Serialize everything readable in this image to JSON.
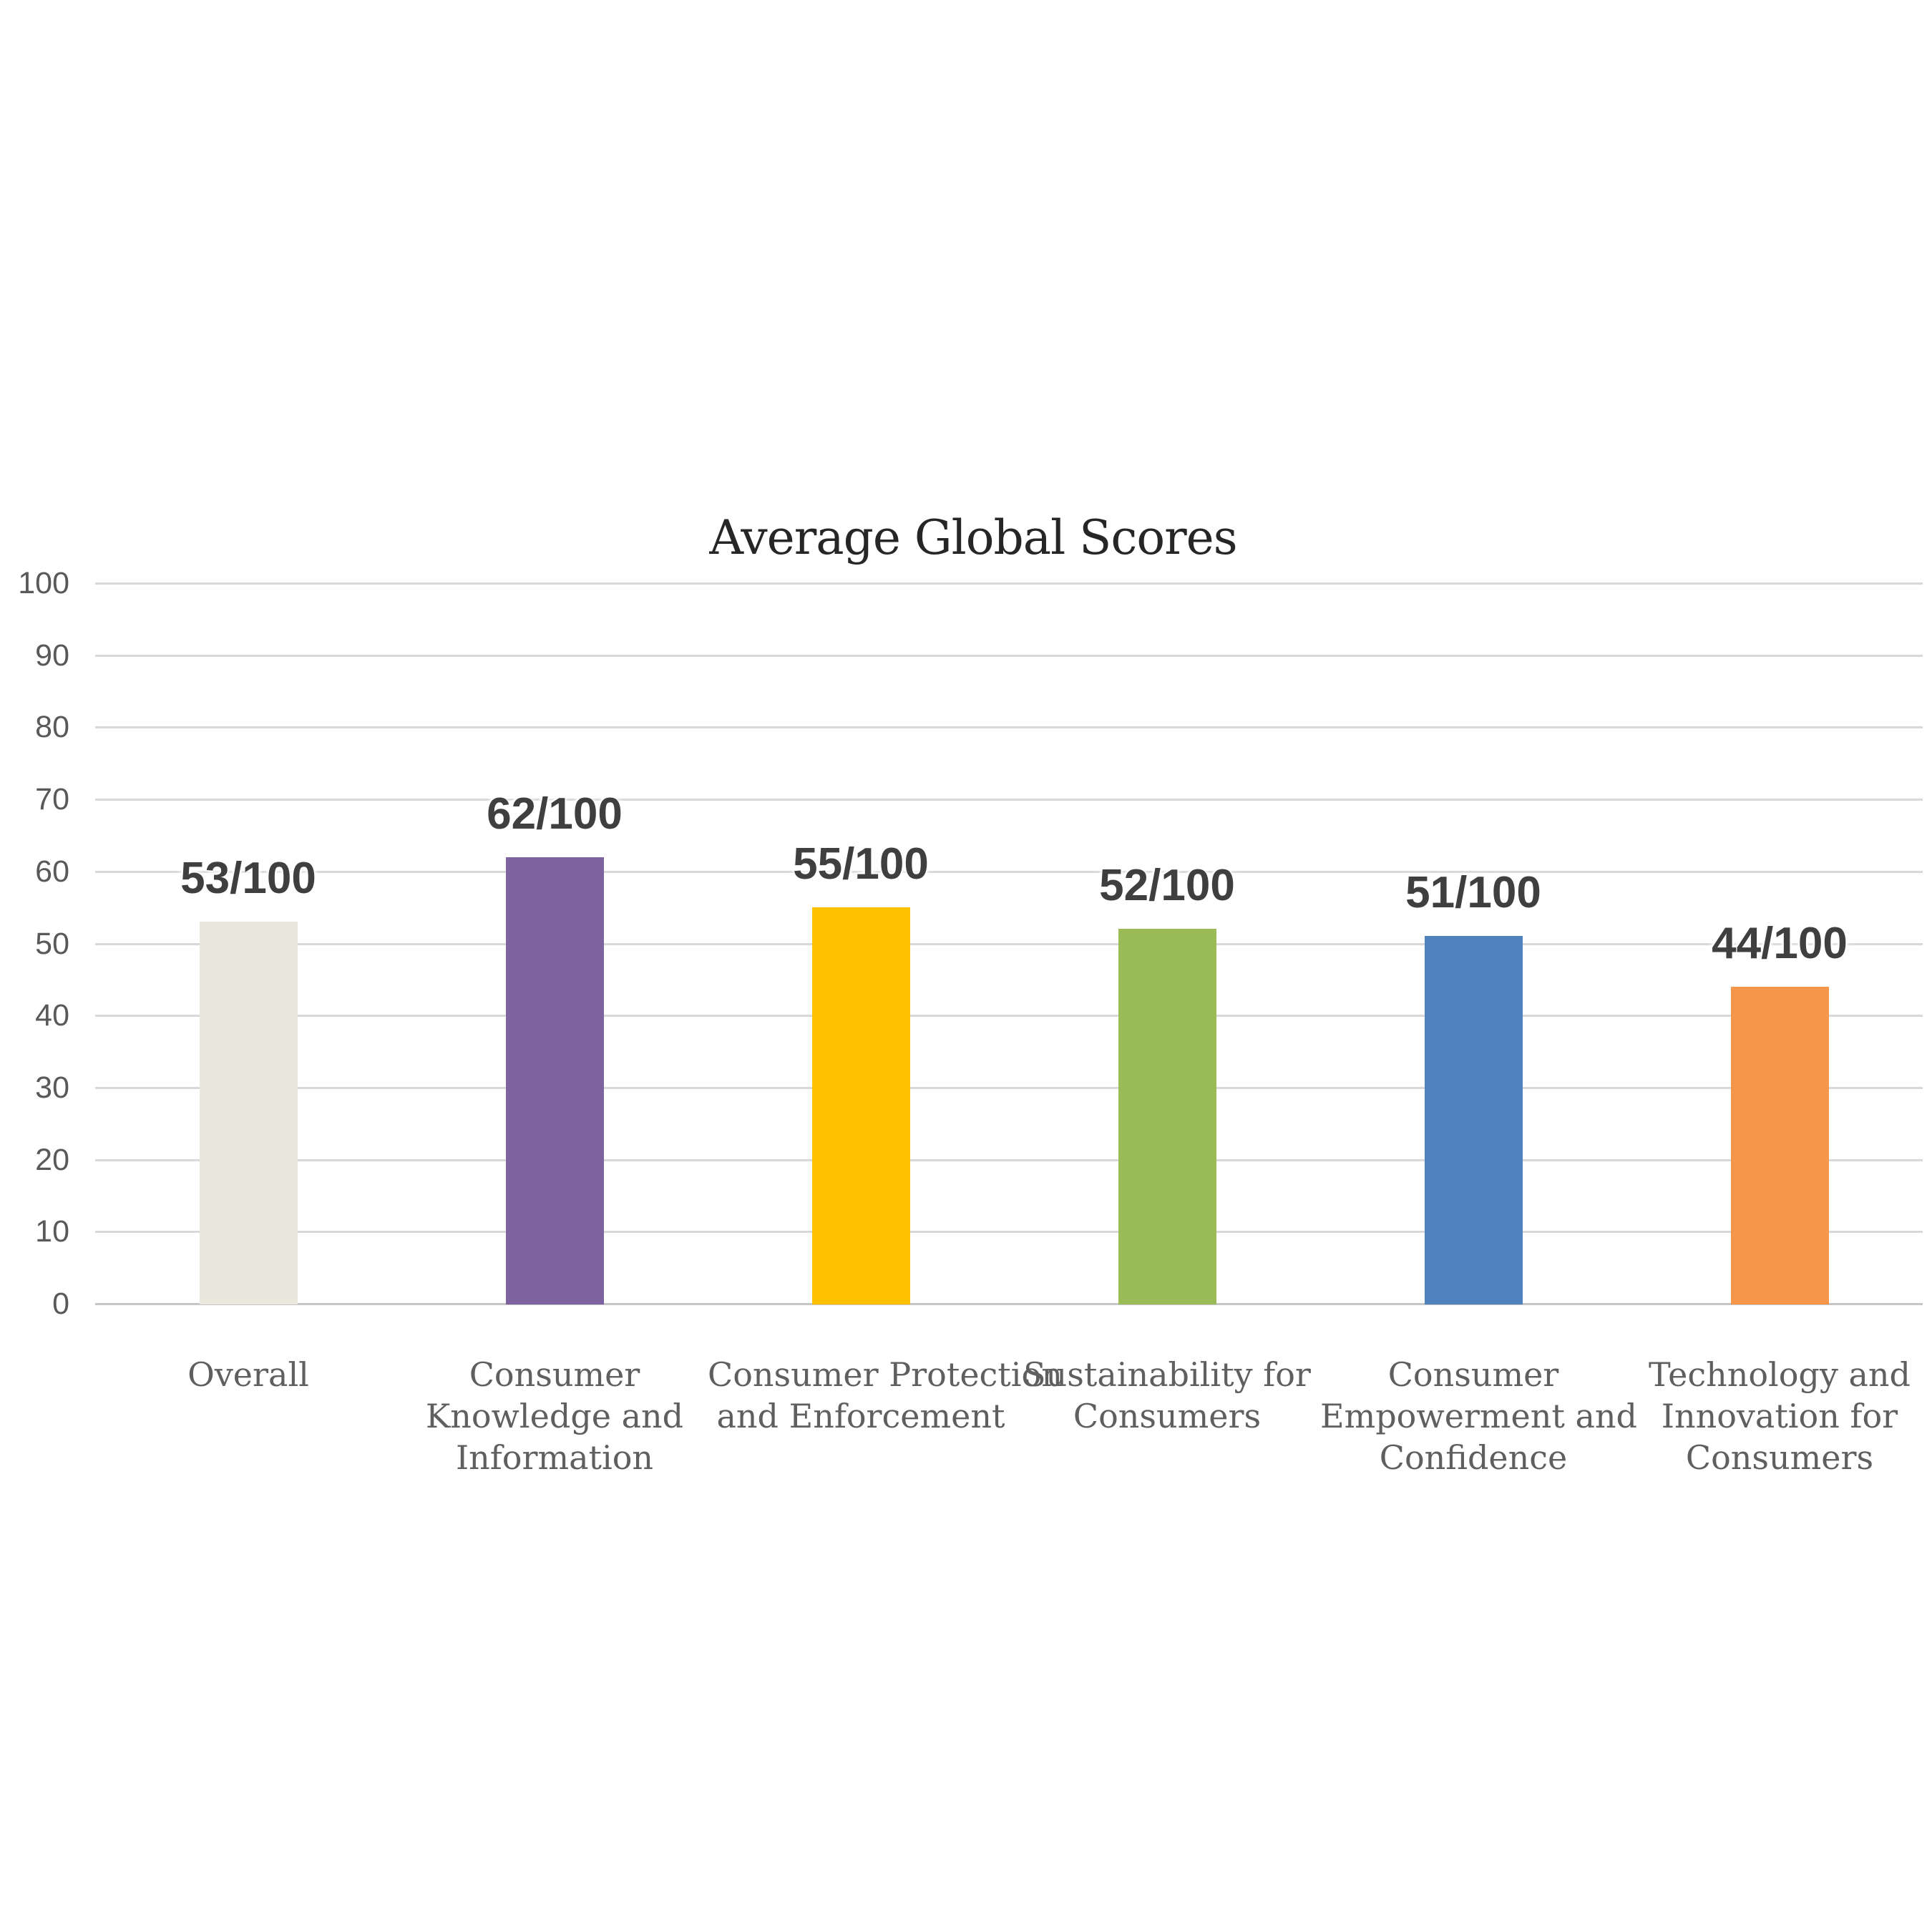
{
  "chart_data": {
    "type": "bar",
    "title": "Average Global Scores",
    "categories": [
      "Overall",
      "Consumer Knowledge and Information",
      "Consumer Protection and Enforcement",
      "Sustainability for Consumers",
      "Consumer Empowerment and Confidence",
      "Technology and Innovation for Consumers"
    ],
    "category_lines": [
      [
        "Overall"
      ],
      [
        "Consumer",
        "Knowledge and",
        "Information"
      ],
      [
        "Consumer Protection",
        "and Enforcement"
      ],
      [
        "Sustainability for",
        "Consumers"
      ],
      [
        "Consumer",
        "Empowerment and",
        "Confidence"
      ],
      [
        "Technology and",
        "Innovation for",
        "Consumers"
      ]
    ],
    "values": [
      53,
      62,
      55,
      52,
      51,
      44
    ],
    "value_labels": [
      "53/100",
      "62/100",
      "55/100",
      "52/100",
      "51/100",
      "44/100"
    ],
    "bar_colors": [
      "#EAE7DC",
      "#7D64A0",
      "#FFC000",
      "#9BBB59",
      "#4F81BD",
      "#F5964A"
    ],
    "ylim": [
      0,
      100
    ],
    "yticks": [
      0,
      10,
      20,
      30,
      40,
      50,
      60,
      70,
      80,
      90,
      100
    ],
    "grid": true,
    "legend": "none",
    "xlabel": "",
    "ylabel": "",
    "colors": {
      "background": "#FFFFFF",
      "title": "#262626",
      "value_label": "#3F3F3F",
      "tick_label": "#595959",
      "category_label": "#5F5F5F",
      "gridline": "#D9D9D9",
      "axis_line": "#C6C6C6"
    }
  }
}
